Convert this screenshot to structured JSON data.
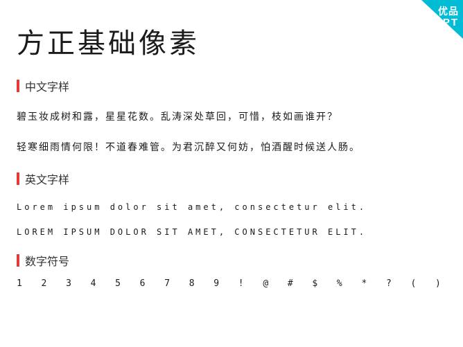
{
  "badge": {
    "line1": "优品",
    "line2": "PPT"
  },
  "title": "方正基础像素",
  "sections": {
    "chinese": {
      "label": "中文字样",
      "line1": "碧玉妆成树和露，星星花数。乱涛深处草回，可惜，枝如画谁开？",
      "line2": "轻寒细雨情何限！不道春难管。为君沉醉又何妨，怕酒醒时候送人肠。"
    },
    "english": {
      "label": "英文字样",
      "lower": "Lorem  ipsum  dolor  sit  amet,  consectetur  elit.",
      "upper": "Lorem  ipsum  dolor  sit  amet,  consectetur  elit."
    },
    "digits": {
      "label": "数字符号",
      "items": [
        "1",
        "2",
        "3",
        "4",
        "5",
        "6",
        "7",
        "8",
        "9",
        "!",
        "@",
        "#",
        "$",
        "%",
        "*",
        "?",
        "(",
        ")"
      ]
    }
  },
  "colors": {
    "badge_bg": "#00bcd4",
    "badge_fg": "#ffffff",
    "accent_bar": "#e53935",
    "text": "#1a1a1a",
    "section_text": "#333333",
    "background": "#ffffff"
  }
}
